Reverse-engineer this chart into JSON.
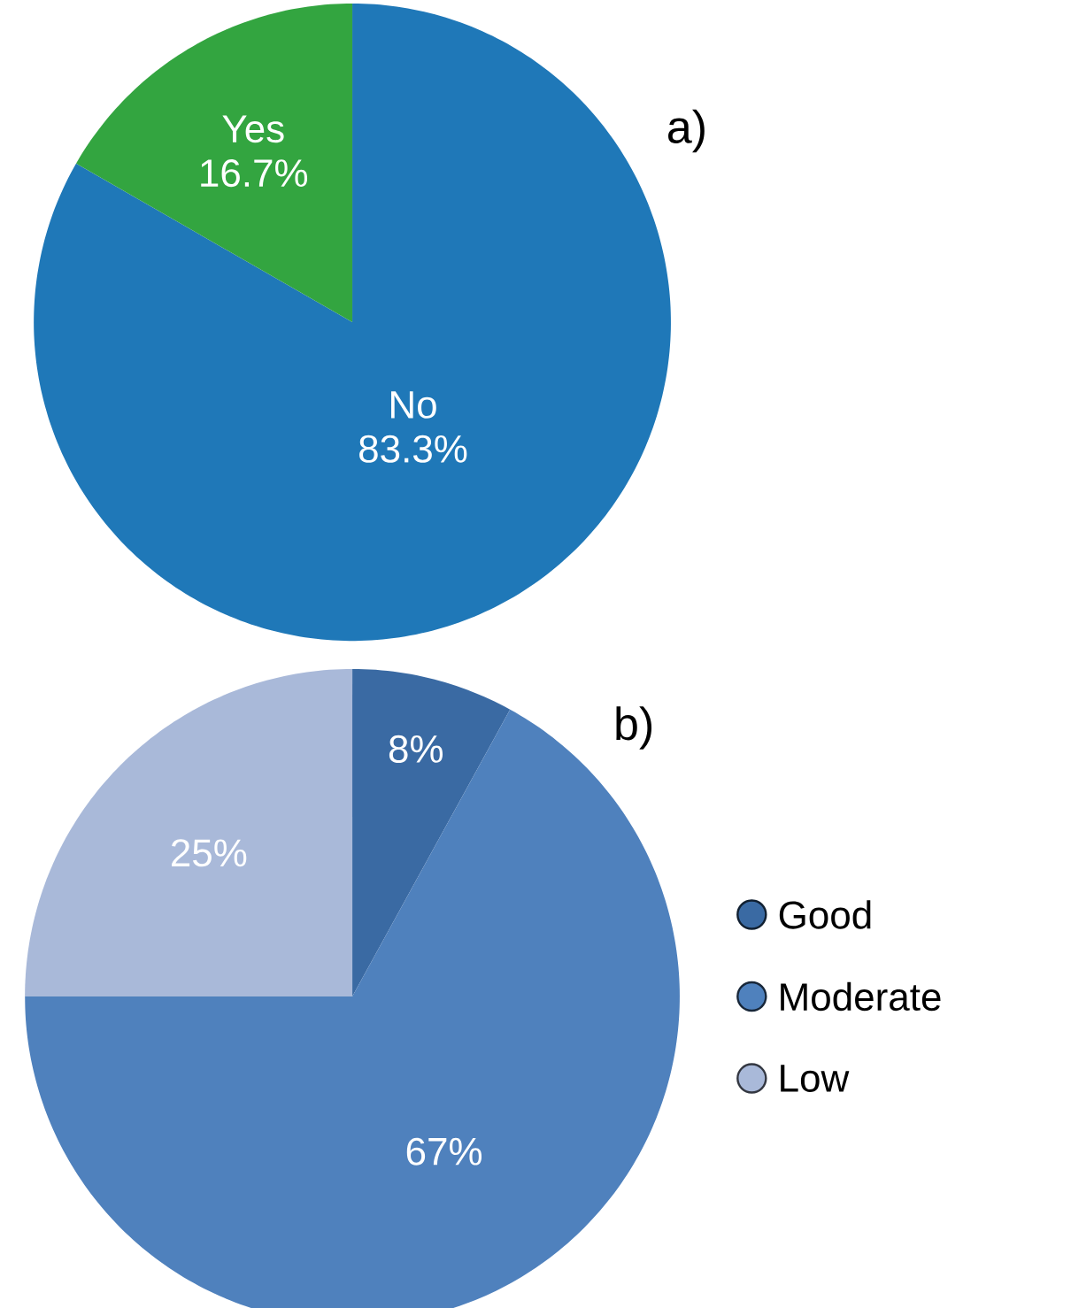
{
  "chart_data": [
    {
      "type": "pie",
      "title": "a)",
      "categories": [
        "No",
        "Yes"
      ],
      "values": [
        83.3,
        16.7
      ],
      "value_labels": [
        "83.3%",
        "16.7%"
      ],
      "colors": [
        "#1f78b8",
        "#33a540"
      ],
      "legend": false
    },
    {
      "type": "pie",
      "title": "b)",
      "categories": [
        "Good",
        "Moderate",
        "Low"
      ],
      "values": [
        8,
        67,
        25
      ],
      "value_labels": [
        "8%",
        "67%",
        "25%"
      ],
      "colors": [
        "#3a6aa3",
        "#4f81bd",
        "#a9b9d9"
      ],
      "legend": "right"
    }
  ]
}
